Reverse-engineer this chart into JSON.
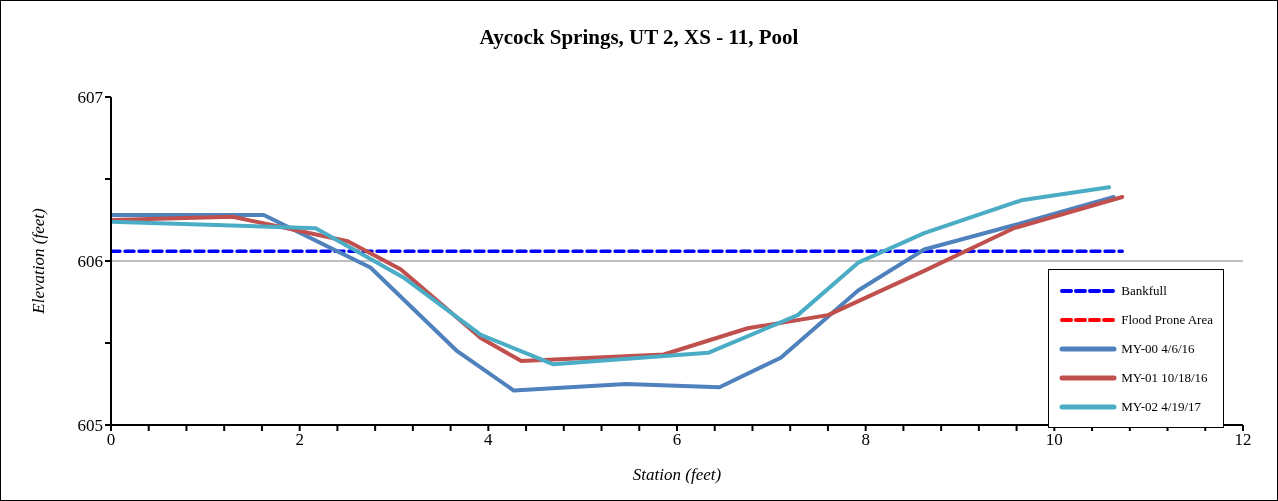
{
  "chart_data": {
    "type": "line",
    "title": "Aycock Springs, UT 2, XS - 11, Pool",
    "xlabel": "Station (feet)",
    "ylabel": "Elevation (feet)",
    "xlim": [
      0,
      12
    ],
    "xticks": [
      0,
      {
        "value": 0.4,
        "label": null
      },
      {
        "value": 0.8,
        "label": null
      },
      {
        "value": 1.2,
        "label": null
      },
      {
        "value": 1.6,
        "label": null
      },
      2,
      {
        "value": 2.4,
        "label": null
      },
      {
        "value": 2.8,
        "label": null
      },
      {
        "value": 3.2,
        "label": null
      },
      {
        "value": 3.6,
        "label": null
      },
      4,
      {
        "value": 4.4,
        "label": null
      },
      {
        "value": 4.8,
        "label": null
      },
      {
        "value": 5.2,
        "label": null
      },
      {
        "value": 5.6,
        "label": null
      },
      6,
      {
        "value": 6.4,
        "label": null
      },
      {
        "value": 6.8,
        "label": null
      },
      {
        "value": 7.2,
        "label": null
      },
      {
        "value": 7.6,
        "label": null
      },
      8,
      {
        "value": 8.4,
        "label": null
      },
      {
        "value": 8.8,
        "label": null
      },
      {
        "value": 9.2,
        "label": null
      },
      {
        "value": 9.6,
        "label": null
      },
      10,
      {
        "value": 10.4,
        "label": null
      },
      {
        "value": 10.8,
        "label": null
      },
      {
        "value": 11.2,
        "label": null
      },
      {
        "value": 11.6,
        "label": null
      },
      12
    ],
    "ylim": [
      605,
      607
    ],
    "yticks": [
      605,
      {
        "value": 605.5,
        "label": null
      },
      606,
      {
        "value": 606.5,
        "label": null
      },
      607
    ],
    "grid": "y",
    "legend": "bottom right",
    "marker": "none",
    "series": [
      {
        "name": "Bankfull",
        "color": "#0000ff",
        "line_style": "dashed",
        "x": [
          0,
          10.72
        ],
        "values": [
          606.06,
          606.06
        ]
      },
      {
        "name": "Flood Prone Area",
        "color": "#ff0000",
        "line_style": "dashed"
      },
      {
        "name": "MY-00 4/6/16",
        "color": "#4f81bd",
        "line_style": "solid",
        "x": [
          0,
          1.62,
          2.75,
          3.67,
          4.27,
          5.46,
          6.45,
          7.1,
          7.92,
          8.62,
          9.65,
          10.63
        ],
        "values": [
          606.28,
          606.28,
          605.96,
          605.45,
          605.21,
          605.25,
          605.23,
          605.41,
          605.82,
          606.07,
          606.23,
          606.39
        ]
      },
      {
        "name": "MY-01 10/18/16",
        "color": "#c0504d",
        "line_style": "solid",
        "x": [
          0,
          1.29,
          2.51,
          3.07,
          3.92,
          4.35,
          5.86,
          6.75,
          7.6,
          8.62,
          9.57,
          10.72
        ],
        "values": [
          606.25,
          606.27,
          606.12,
          605.95,
          605.53,
          605.39,
          605.43,
          605.59,
          605.67,
          605.94,
          606.2,
          606.39
        ]
      },
      {
        "name": "MY-02 4/19/17",
        "color": "#4bacc6",
        "line_style": "solid",
        "x": [
          0,
          2.17,
          3.1,
          3.92,
          4.69,
          6.33,
          7.28,
          7.92,
          8.62,
          9.65,
          10.58
        ],
        "values": [
          606.24,
          606.2,
          605.9,
          605.55,
          605.37,
          605.44,
          605.67,
          605.99,
          606.17,
          606.37,
          606.45
        ]
      }
    ]
  }
}
